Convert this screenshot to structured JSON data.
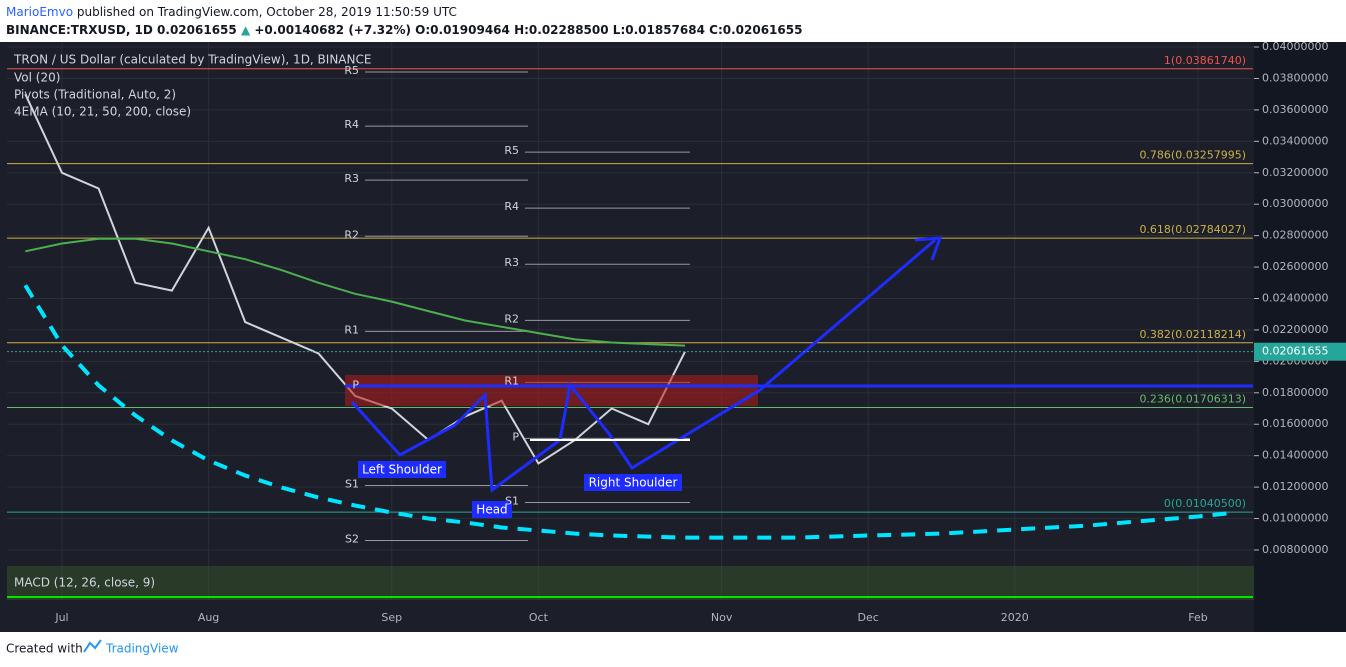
{
  "header": {
    "author": "MarioEmvo",
    "published": "published on TradingView.com, October 28, 2019 11:50:59 UTC",
    "symbol": "BINANCE:TRXUSD, 1D",
    "last": "0.02061655",
    "change": "+0.00140682 (+7.32%)",
    "open": "O:0.01909464",
    "high": "H:0.02288500",
    "low": "L:0.01857684",
    "close": "C:0.02061655"
  },
  "indicators": [
    "TRON / US Dollar (calculated by TradingView), 1D, BINANCE",
    "Vol (20)",
    "Pivots (Traditional, Auto, 2)",
    "4EMA (10, 21, 50, 200, close)",
    "MACD (12, 26, close, 9)"
  ],
  "chart_data": {
    "type": "line",
    "categories": [
      null,
      "Jul",
      null,
      null,
      null,
      "Aug",
      null,
      null,
      null,
      null,
      "Sep",
      null,
      null,
      null,
      "Oct",
      null,
      null,
      null,
      null,
      "Nov",
      null,
      null,
      null,
      "Dec",
      null,
      null,
      null,
      "2020",
      null,
      null,
      null,
      null,
      "Feb",
      null
    ],
    "series": [
      {
        "color": "#d1d4dc",
        "values": [
          0.037,
          0.032,
          0.031,
          0.025,
          0.0245,
          0.0285,
          0.0225,
          0.0215,
          0.0205,
          0.0178,
          0.017,
          0.015,
          0.0165,
          0.0175,
          0.0135,
          0.015,
          0.017,
          0.016,
          0.02061655,
          null,
          null,
          null,
          null,
          null,
          null,
          null,
          null,
          null,
          null,
          null,
          null,
          null,
          null,
          null
        ]
      },
      {
        "color": "#4caf50",
        "values": [
          0.027,
          0.0275,
          0.0278,
          0.0278,
          0.0275,
          0.027,
          0.0265,
          0.0258,
          0.025,
          0.0243,
          0.0238,
          0.0232,
          0.0226,
          0.0222,
          0.0218,
          0.0214,
          0.0212,
          0.0211,
          0.021,
          null,
          null,
          null,
          null,
          null,
          null,
          null,
          null,
          null,
          null,
          null,
          null,
          null,
          null,
          null
        ]
      },
      {
        "color": "#00e5ff",
        "dashed": true,
        "values": [
          0.02484,
          0.02102,
          0.01847,
          0.01656,
          0.01497,
          0.01369,
          0.01274,
          0.01197,
          0.01134,
          0.01083,
          0.01038,
          0.01,
          0.00975,
          0.00943,
          0.00924,
          0.00904,
          0.00892,
          0.00885,
          0.00879,
          0.00879,
          0.00879,
          0.00879,
          0.00885,
          0.00892,
          0.00898,
          0.00904,
          0.00917,
          0.0093,
          0.00943,
          0.00955,
          0.00975,
          0.00994,
          0.01013,
          0.01038
        ]
      }
    ],
    "ylim": [
      0.00698,
      0.04032
    ],
    "yticks": [
      {
        "value": 0.008,
        "label": "0.00800000"
      },
      {
        "value": 0.01,
        "label": "0.01000000"
      },
      {
        "value": 0.012,
        "label": "0.01200000"
      },
      {
        "value": 0.014,
        "label": "0.01400000"
      },
      {
        "value": 0.016,
        "label": "0.01600000"
      },
      {
        "value": 0.018,
        "label": "0.01800000"
      },
      {
        "value": 0.02,
        "label": "0.02000000"
      },
      {
        "value": 0.022,
        "label": "0.02200000"
      },
      {
        "value": 0.024,
        "label": "0.02400000"
      },
      {
        "value": 0.026,
        "label": "0.02600000"
      },
      {
        "value": 0.028,
        "label": "0.02800000"
      },
      {
        "value": 0.03,
        "label": "0.03000000"
      },
      {
        "value": 0.032,
        "label": "0.03200000"
      },
      {
        "value": 0.034,
        "label": "0.03400000"
      },
      {
        "value": 0.036,
        "label": "0.03600000"
      },
      {
        "value": 0.038,
        "label": "0.03800000"
      },
      {
        "value": 0.04,
        "label": "0.04000000"
      }
    ],
    "price_label": {
      "value": 0.02061655,
      "label": "0.02061655"
    },
    "fib_levels": [
      {
        "value": 0.0386174,
        "label": "1(0.03861740)",
        "color": "#ef5350"
      },
      {
        "value": 0.03257995,
        "label": "0.786(0.03257995)",
        "color": "#c9b14a"
      },
      {
        "value": 0.02784027,
        "label": "0.618(0.02784027)",
        "color": "#c9b14a"
      },
      {
        "value": 0.02118214,
        "label": "0.382(0.02118214)",
        "color": "#c9b14a"
      },
      {
        "value": 0.01706313,
        "label": "0.236(0.01706313)",
        "color": "#66bb6a"
      },
      {
        "value": 0.010405,
        "label": "0(0.01040500)",
        "color": "#26a69a"
      }
    ],
    "pivots": [
      [
        {
          "label": "R5",
          "value": 0.03841
        },
        {
          "label": "R4",
          "value": 0.03497
        },
        {
          "label": "R3",
          "value": 0.03153
        },
        {
          "label": "R2",
          "value": 0.02796
        },
        {
          "label": "R1",
          "value": 0.02191
        },
        {
          "label": "P",
          "value": 0.01841
        },
        {
          "label": "S1",
          "value": 0.0121
        },
        {
          "label": "S2",
          "value": 0.0086
        }
      ],
      [
        {
          "label": "R5",
          "value": 0.03331
        },
        {
          "label": "R4",
          "value": 0.02975
        },
        {
          "label": "R3",
          "value": 0.02618
        },
        {
          "label": "R2",
          "value": 0.02261
        },
        {
          "label": "R1",
          "value": 0.01866
        },
        {
          "label": "P",
          "value": 0.0151
        },
        {
          "label": "S1",
          "value": 0.01102
        }
      ]
    ],
    "annotations": [
      "Left Shoulder",
      "Head",
      "Right Shoulder"
    ]
  },
  "footer": {
    "created": "Created with",
    "brand": "TradingView"
  }
}
